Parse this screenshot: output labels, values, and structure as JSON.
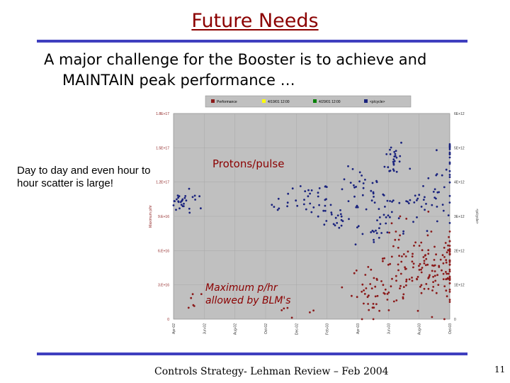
{
  "slide": {
    "title": "Future Needs",
    "subtitle_line1": "A major challenge for the Booster is to achieve and",
    "subtitle_line2": "MAINTAIN peak performance …",
    "note": "Day to day and even hour to hour scatter is large!",
    "footer": "Controls Strategy- Lehman Review – Feb 2004",
    "page_number": "11"
  },
  "colors": {
    "title": "#8b0000",
    "rule": "#3f3fbf",
    "plot_bg": "#c0c0c0",
    "protons": "#1a237e",
    "maxrate": "#8b1a1a",
    "annotation": "#8b0000",
    "legend_bg": "#c0c0c0"
  },
  "chart_data": {
    "type": "scatter",
    "legend": [
      "Performance",
      "4/19/01 12:00",
      "4/29/01 12:00",
      "<p/cycle>"
    ],
    "legend_position": "top",
    "ylabel_left": "Maximum p/hr",
    "ylabel_right": "<p/cycle>",
    "yticks_left": [
      "0",
      "3.E+16",
      "6.E+16",
      "9.E+16",
      "1.2E+17",
      "1.5E+17",
      "1.8E+17"
    ],
    "yticks_right": [
      "0",
      "1E+12",
      "2E+12",
      "3E+12",
      "4E+12",
      "5E+12",
      "6E+12"
    ],
    "ylim_left": [
      0,
      1.8e+17
    ],
    "ylim_right": [
      0,
      6000000000000.0
    ],
    "xticks": [
      "Apr-02",
      "Jun-02",
      "Aug-02",
      "Oct-02",
      "Dec-02",
      "Feb-03",
      "Apr-03",
      "Jun-03",
      "Aug-03",
      "Oct-03"
    ],
    "grid": true,
    "annotations": [
      "Protons/pulse",
      "Maximum p/hr allowed by BLM's"
    ],
    "series": [
      {
        "name": "<p/cycle>",
        "axis": "right",
        "clusters": [
          {
            "x": 0.2,
            "y": 3400000000000.0,
            "n": 18,
            "sx": 0.15,
            "sy": 150000000000.0
          },
          {
            "x": 0.6,
            "y": 3500000000000.0,
            "n": 12,
            "sx": 0.25,
            "sy": 150000000000.0
          },
          {
            "x": 3.6,
            "y": 3350000000000.0,
            "n": 8,
            "sx": 0.2,
            "sy": 200000000000.0
          },
          {
            "x": 4.5,
            "y": 3500000000000.0,
            "n": 25,
            "sx": 0.3,
            "sy": 250000000000.0
          },
          {
            "x": 5.1,
            "y": 3000000000000.0,
            "n": 12,
            "sx": 0.2,
            "sy": 200000000000.0
          },
          {
            "x": 5.5,
            "y": 2800000000000.0,
            "n": 8,
            "sx": 0.25,
            "sy": 150000000000.0
          },
          {
            "x": 6.1,
            "y": 3700000000000.0,
            "n": 30,
            "sx": 0.35,
            "sy": 350000000000.0
          },
          {
            "x": 6.4,
            "y": 2600000000000.0,
            "n": 18,
            "sx": 0.3,
            "sy": 300000000000.0
          },
          {
            "x": 6.9,
            "y": 3300000000000.0,
            "n": 14,
            "sx": 0.2,
            "sy": 300000000000.0
          },
          {
            "x": 7.2,
            "y": 4700000000000.0,
            "n": 25,
            "sx": 0.15,
            "sy": 300000000000.0
          },
          {
            "x": 7.9,
            "y": 3300000000000.0,
            "n": 22,
            "sx": 0.4,
            "sy": 350000000000.0
          },
          {
            "x": 8.6,
            "y": 3800000000000.0,
            "n": 28,
            "sx": 0.5,
            "sy": 500000000000.0
          },
          {
            "x": 9.3,
            "y": 4800000000000.0,
            "n": 12,
            "sx": 0.3,
            "sy": 300000000000.0
          }
        ]
      },
      {
        "name": "Performance",
        "axis": "left",
        "clusters": [
          {
            "x": 0.6,
            "y": 1.5e+16,
            "n": 6,
            "sx": 0.15,
            "sy": 4000000000000000.0
          },
          {
            "x": 4.1,
            "y": 1.2e+16,
            "n": 6,
            "sx": 0.4,
            "sy": 5000000000000000.0
          },
          {
            "x": 6.5,
            "y": 2.5e+16,
            "n": 40,
            "sx": 0.35,
            "sy": 1.2e+16
          },
          {
            "x": 7.3,
            "y": 5.5e+16,
            "n": 25,
            "sx": 0.3,
            "sy": 1.5e+16
          },
          {
            "x": 7.7,
            "y": 3.5e+16,
            "n": 45,
            "sx": 0.5,
            "sy": 1.5e+16
          },
          {
            "x": 8.5,
            "y": 4.5e+16,
            "n": 60,
            "sx": 0.45,
            "sy": 1.5e+16
          },
          {
            "x": 9.1,
            "y": 4e+16,
            "n": 35,
            "sx": 0.3,
            "sy": 1.5e+16
          }
        ]
      }
    ]
  }
}
